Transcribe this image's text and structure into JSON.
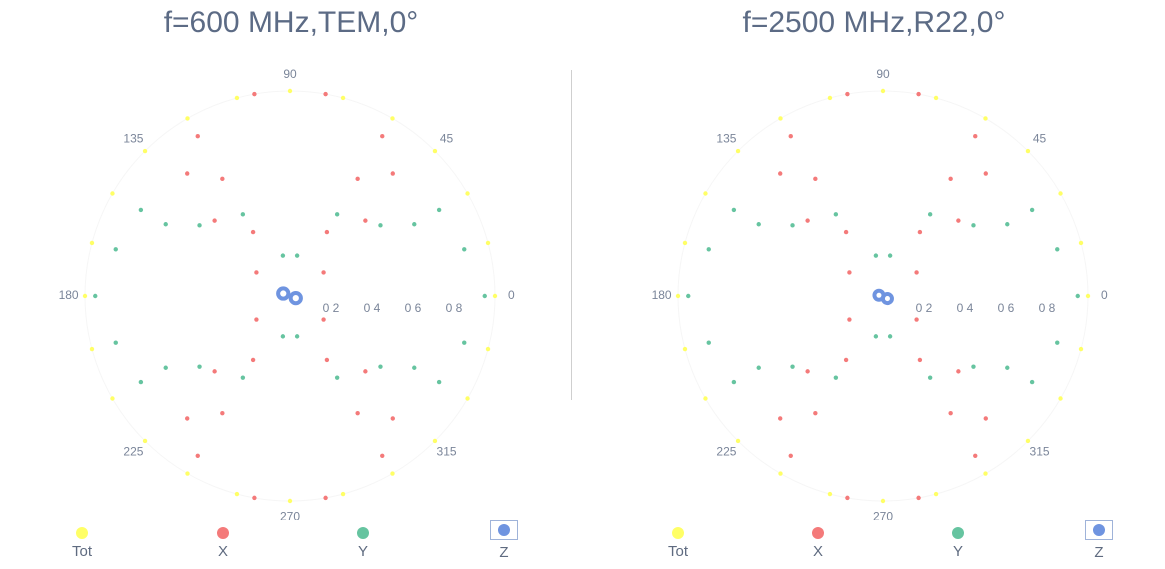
{
  "chart_data": [
    {
      "type": "polar-scatter",
      "title": "f=600 MHz,TEM,0°",
      "angle_ticks": [
        "90",
        "45",
        "0",
        "315",
        "270",
        "225",
        "180",
        "135"
      ],
      "radial_ticks": [
        "0 2",
        "0 4",
        "0 6",
        "0 8"
      ],
      "rlim": [
        0,
        1
      ],
      "series": [
        {
          "name": "Tot",
          "color": "#ffff66",
          "marker": "dots",
          "points": [
            [
              1.0,
              0
            ],
            [
              1.0,
              15
            ],
            [
              1.0,
              30
            ],
            [
              1.0,
              45
            ],
            [
              1.0,
              60
            ],
            [
              1.0,
              75
            ],
            [
              1.0,
              90
            ],
            [
              1.0,
              105
            ],
            [
              1.0,
              120
            ],
            [
              1.0,
              135
            ],
            [
              1.0,
              150
            ],
            [
              1.0,
              165
            ],
            [
              1.0,
              180
            ],
            [
              1.0,
              195
            ],
            [
              1.0,
              210
            ],
            [
              1.0,
              225
            ],
            [
              1.0,
              240
            ],
            [
              1.0,
              255
            ],
            [
              1.0,
              270
            ],
            [
              1.0,
              285
            ],
            [
              1.0,
              300
            ],
            [
              1.0,
              315
            ],
            [
              1.0,
              330
            ],
            [
              1.0,
              345
            ]
          ]
        },
        {
          "name": "X",
          "color": "#f47a7a",
          "marker": "dots",
          "points": [
            [
              1.0,
              80
            ],
            [
              1.0,
              100
            ],
            [
              0.9,
              60
            ],
            [
              0.9,
              120
            ],
            [
              0.78,
              50
            ],
            [
              0.78,
              130
            ],
            [
              0.66,
              60
            ],
            [
              0.66,
              120
            ],
            [
              0.52,
              45
            ],
            [
              0.52,
              135
            ],
            [
              0.36,
              60
            ],
            [
              0.36,
              120
            ],
            [
              0.2,
              35
            ],
            [
              0.2,
              145
            ],
            [
              1.0,
              260
            ],
            [
              1.0,
              280
            ],
            [
              0.9,
              240
            ],
            [
              0.9,
              300
            ],
            [
              0.78,
              230
            ],
            [
              0.78,
              310
            ],
            [
              0.66,
              240
            ],
            [
              0.66,
              300
            ],
            [
              0.52,
              225
            ],
            [
              0.52,
              315
            ],
            [
              0.36,
              240
            ],
            [
              0.36,
              300
            ],
            [
              0.2,
              215
            ],
            [
              0.2,
              325
            ]
          ]
        },
        {
          "name": "Y",
          "color": "#66c4a0",
          "marker": "dots",
          "points": [
            [
              0.95,
              0
            ],
            [
              0.95,
              180
            ],
            [
              0.88,
              165
            ],
            [
              0.88,
              15
            ],
            [
              0.84,
              150
            ],
            [
              0.84,
              30
            ],
            [
              0.7,
              150
            ],
            [
              0.7,
              30
            ],
            [
              0.56,
              142
            ],
            [
              0.56,
              38
            ],
            [
              0.46,
              120
            ],
            [
              0.46,
              60
            ],
            [
              0.2,
              100
            ],
            [
              0.2,
              80
            ],
            [
              0.88,
              195
            ],
            [
              0.88,
              345
            ],
            [
              0.84,
              210
            ],
            [
              0.84,
              330
            ],
            [
              0.7,
              210
            ],
            [
              0.7,
              330
            ],
            [
              0.56,
              218
            ],
            [
              0.56,
              322
            ],
            [
              0.46,
              240
            ],
            [
              0.46,
              300
            ],
            [
              0.2,
              260
            ],
            [
              0.2,
              280
            ]
          ]
        },
        {
          "name": "Z",
          "color": "#6f94e0",
          "marker": "ring",
          "rings": [
            [
              0.035,
              160,
              0.025
            ],
            [
              0.03,
              -20,
              0.025
            ]
          ]
        }
      ]
    },
    {
      "type": "polar-scatter",
      "title": "f=2500 MHz,R22,0°",
      "angle_ticks": [
        "90",
        "45",
        "0",
        "315",
        "270",
        "225",
        "180",
        "135"
      ],
      "radial_ticks": [
        "0 2",
        "0 4",
        "0 6",
        "0 8"
      ],
      "rlim": [
        0,
        1
      ],
      "series": [
        {
          "name": "Tot",
          "color": "#ffff66",
          "marker": "dots",
          "points": [
            [
              1.0,
              0
            ],
            [
              1.0,
              15
            ],
            [
              1.0,
              30
            ],
            [
              1.0,
              45
            ],
            [
              1.0,
              60
            ],
            [
              1.0,
              75
            ],
            [
              1.0,
              90
            ],
            [
              1.0,
              105
            ],
            [
              1.0,
              120
            ],
            [
              1.0,
              135
            ],
            [
              1.0,
              150
            ],
            [
              1.0,
              165
            ],
            [
              1.0,
              180
            ],
            [
              1.0,
              195
            ],
            [
              1.0,
              210
            ],
            [
              1.0,
              225
            ],
            [
              1.0,
              240
            ],
            [
              1.0,
              255
            ],
            [
              1.0,
              270
            ],
            [
              1.0,
              285
            ],
            [
              1.0,
              300
            ],
            [
              1.0,
              315
            ],
            [
              1.0,
              330
            ],
            [
              1.0,
              345
            ]
          ]
        },
        {
          "name": "X",
          "color": "#f47a7a",
          "marker": "dots",
          "points": [
            [
              1.0,
              80
            ],
            [
              1.0,
              100
            ],
            [
              0.9,
              60
            ],
            [
              0.9,
              120
            ],
            [
              0.78,
              50
            ],
            [
              0.78,
              130
            ],
            [
              0.66,
              60
            ],
            [
              0.66,
              120
            ],
            [
              0.52,
              45
            ],
            [
              0.52,
              135
            ],
            [
              0.36,
              60
            ],
            [
              0.36,
              120
            ],
            [
              0.2,
              35
            ],
            [
              0.2,
              145
            ],
            [
              1.0,
              260
            ],
            [
              1.0,
              280
            ],
            [
              0.9,
              240
            ],
            [
              0.9,
              300
            ],
            [
              0.78,
              230
            ],
            [
              0.78,
              310
            ],
            [
              0.66,
              240
            ],
            [
              0.66,
              300
            ],
            [
              0.52,
              225
            ],
            [
              0.52,
              315
            ],
            [
              0.36,
              240
            ],
            [
              0.36,
              300
            ],
            [
              0.2,
              215
            ],
            [
              0.2,
              325
            ]
          ]
        },
        {
          "name": "Y",
          "color": "#66c4a0",
          "marker": "dots",
          "points": [
            [
              0.95,
              0
            ],
            [
              0.95,
              180
            ],
            [
              0.88,
              165
            ],
            [
              0.88,
              15
            ],
            [
              0.84,
              150
            ],
            [
              0.84,
              30
            ],
            [
              0.7,
              150
            ],
            [
              0.7,
              30
            ],
            [
              0.56,
              142
            ],
            [
              0.56,
              38
            ],
            [
              0.46,
              120
            ],
            [
              0.46,
              60
            ],
            [
              0.2,
              100
            ],
            [
              0.2,
              80
            ],
            [
              0.88,
              195
            ],
            [
              0.88,
              345
            ],
            [
              0.84,
              210
            ],
            [
              0.84,
              330
            ],
            [
              0.7,
              210
            ],
            [
              0.7,
              330
            ],
            [
              0.56,
              218
            ],
            [
              0.56,
              322
            ],
            [
              0.46,
              240
            ],
            [
              0.46,
              300
            ],
            [
              0.2,
              260
            ],
            [
              0.2,
              280
            ]
          ]
        },
        {
          "name": "Z",
          "color": "#6f94e0",
          "marker": "ring",
          "rings": [
            [
              0.02,
              170,
              0.022
            ],
            [
              0.025,
              -30,
              0.022
            ]
          ]
        }
      ]
    }
  ],
  "legend": [
    {
      "label": "Tot",
      "color": "#ffff66",
      "selected": false
    },
    {
      "label": "X",
      "color": "#f47a7a",
      "selected": false
    },
    {
      "label": "Y",
      "color": "#66c4a0",
      "selected": false
    },
    {
      "label": "Z",
      "color": "#6f94e0",
      "selected": true
    }
  ]
}
